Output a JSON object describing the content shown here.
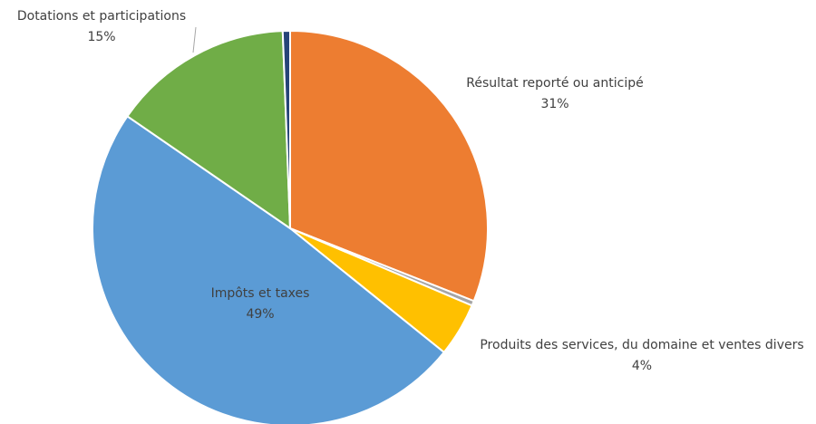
{
  "chart_data": {
    "type": "pie",
    "categories": [
      "Résultat reporté ou anticipé",
      null,
      "Produits des services, du domaine et ventes divers",
      "Impôts et taxes",
      "Dotations et participations",
      null
    ],
    "values": [
      31,
      0.4,
      4.4,
      48.8,
      14.8,
      0.6
    ],
    "value_labels": [
      "31%",
      null,
      "4%",
      "49%",
      "15%",
      null
    ],
    "colors": [
      "#ed7d31",
      "#a5a5a5",
      "#ffc000",
      "#5b9bd5",
      "#70ad47",
      "#264478"
    ]
  }
}
